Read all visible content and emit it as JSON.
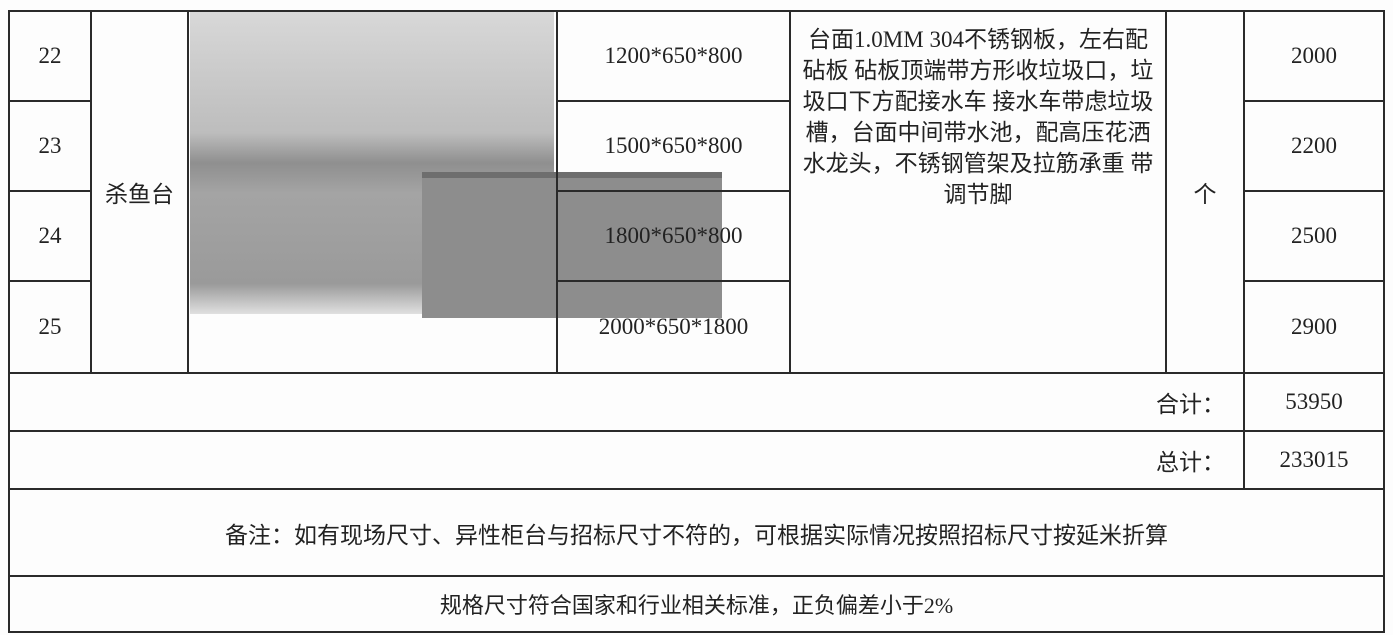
{
  "table": {
    "rows": [
      {
        "no": "22",
        "size": "1200*650*800",
        "price": "2000"
      },
      {
        "no": "23",
        "size": "1500*650*800",
        "price": "2200"
      },
      {
        "no": "24",
        "size": "1800*650*800",
        "price": "2500"
      },
      {
        "no": "25",
        "size": "2000*650*1800",
        "price": "2900"
      }
    ],
    "name": "杀鱼台",
    "description": "台面1.0MM 304不锈钢板，左右配砧板 砧板顶端带方形收垃圾口，垃圾口下方配接水车 接水车带虑垃圾槽，台面中间带水池，配高压花洒水龙头，不锈钢管架及拉筋承重 带调节脚",
    "unit": "个",
    "subtotal_label": "合计：",
    "subtotal": "53950",
    "total_label": "总计：",
    "total": "233015"
  },
  "notes": [
    "备注：如有现场尺寸、异性柜台与招标尺寸不符的，可根据实际情况按照招标尺寸按延米折算",
    "规格尺寸符合国家和行业相关标准，正负偏差小于2%"
  ]
}
